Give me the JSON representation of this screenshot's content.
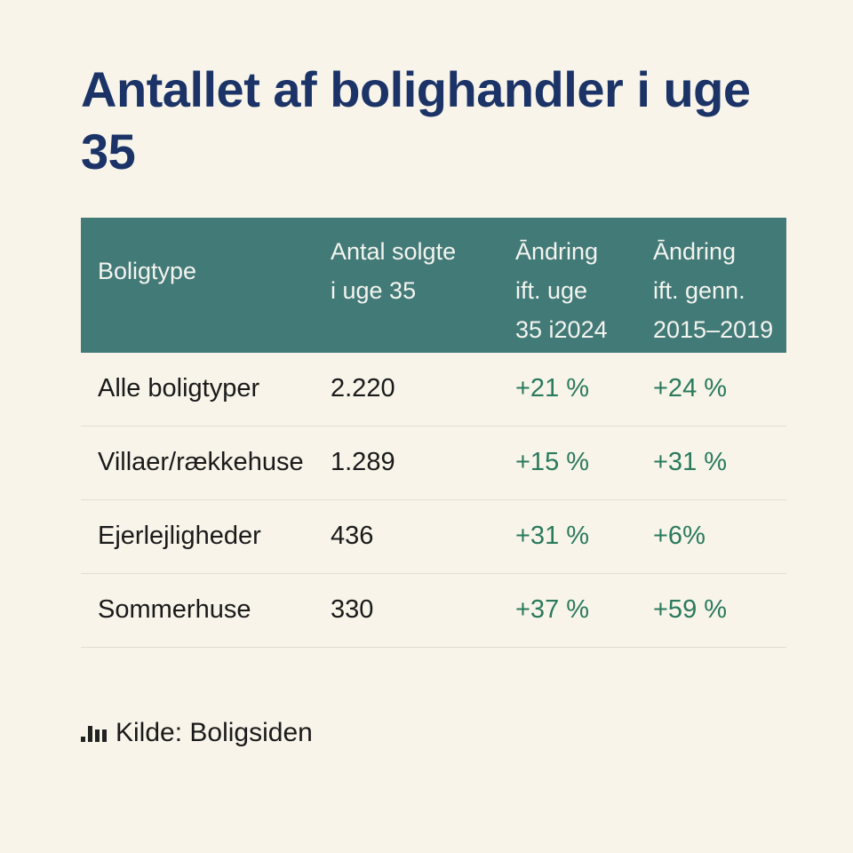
{
  "title": "Antallet af bolighandler i uge 35",
  "chart_data": {
    "type": "table",
    "columns": [
      "Boligtype",
      "Antal solgte i uge 35",
      "Āndring ift. uge 35 i2024",
      "Āndring ift. genn. 2015–2019"
    ],
    "header_lines": [
      [
        "Boligtype"
      ],
      [
        "Antal solgte",
        "i uge 35"
      ],
      [
        "Āndring",
        "ift. uge",
        "35 i2024"
      ],
      [
        "Āndring",
        "ift. genn.",
        "2015–2019"
      ]
    ],
    "rows": [
      [
        "Alle boligtyper",
        "2.220",
        "+21 %",
        "+24 %"
      ],
      [
        "Villaer/rækkehuse",
        "1.289",
        "+15 %",
        "+31 %"
      ],
      [
        "Ejerlejligheder",
        "436",
        "+31 %",
        "+6%"
      ],
      [
        "Sommerhuse",
        "330",
        "+37 %",
        "+59 %"
      ]
    ]
  },
  "source": {
    "icon": "bar-chart-icon",
    "label": "Kilde: Boligsiden"
  },
  "colors": {
    "background": "#f8f4ea",
    "header": "#427a78",
    "title": "#1b3366",
    "positive": "#2a7a5c"
  }
}
